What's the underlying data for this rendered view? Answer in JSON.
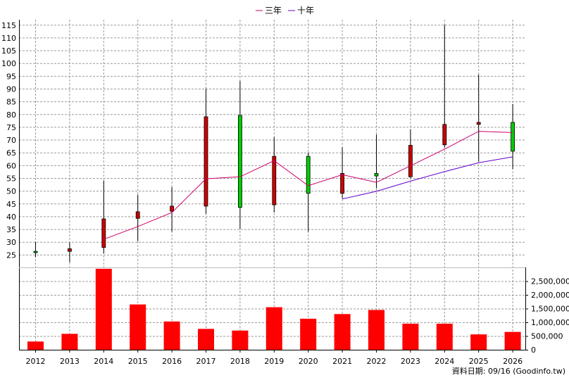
{
  "chart_data": [
    {
      "type": "candlestick",
      "legend": {
        "placement": "top-center",
        "items": [
          {
            "name": "三年",
            "color": "#cc0066"
          },
          {
            "name": "十年",
            "color": "#6600cc"
          }
        ]
      },
      "ylim": [
        20,
        117
      ],
      "yticks": [
        "25",
        "30",
        "35",
        "40",
        "45",
        "50",
        "55",
        "60",
        "65",
        "70",
        "75",
        "80",
        "85",
        "90",
        "95",
        "100",
        "105",
        "110",
        "115"
      ],
      "grid": true,
      "categories": [
        "2012",
        "2013",
        "2014",
        "2015",
        "2016",
        "2017",
        "2018",
        "2019",
        "2020",
        "2021",
        "2022",
        "2023",
        "2024",
        "2025",
        "2026"
      ],
      "ohlc": [
        {
          "year": "2012",
          "open": 26.3,
          "high": 30.0,
          "low": 24.0,
          "close": 26.0
        },
        {
          "year": "2013",
          "open": 26.3,
          "high": 29.8,
          "low": 22.0,
          "close": 27.3
        },
        {
          "year": "2014",
          "open": 27.8,
          "high": 54.0,
          "low": 25.5,
          "close": 39.0
        },
        {
          "year": "2015",
          "open": 39.2,
          "high": 48.5,
          "low": 30.3,
          "close": 41.8
        },
        {
          "year": "2016",
          "open": 42.0,
          "high": 51.5,
          "low": 34.0,
          "close": 44.0
        },
        {
          "year": "2017",
          "open": 44.0,
          "high": 90.0,
          "low": 41.0,
          "close": 79.0
        },
        {
          "year": "2018",
          "open": 79.5,
          "high": 93.0,
          "low": 35.0,
          "close": 43.5
        },
        {
          "year": "2019",
          "open": 44.5,
          "high": 71.0,
          "low": 41.5,
          "close": 63.5
        },
        {
          "year": "2020",
          "open": 63.5,
          "high": 65.0,
          "low": 34.0,
          "close": 49.0
        },
        {
          "year": "2021",
          "open": 49.0,
          "high": 67.0,
          "low": 47.0,
          "close": 56.8
        },
        {
          "year": "2022",
          "open": 56.8,
          "high": 72.0,
          "low": 51.0,
          "close": 55.8
        },
        {
          "year": "2023",
          "open": 55.5,
          "high": 74.0,
          "low": 55.0,
          "close": 67.8
        },
        {
          "year": "2024",
          "open": 68.0,
          "high": 115.0,
          "low": 67.0,
          "close": 76.0
        },
        {
          "year": "2025",
          "open": 76.0,
          "high": 95.5,
          "low": 61.5,
          "close": 76.8
        },
        {
          "year": "2026",
          "open": 76.8,
          "high": 84.0,
          "low": 58.5,
          "close": 65.5
        }
      ],
      "series": [
        {
          "name": "三年",
          "color": "#cc0066",
          "points": [
            {
              "x": "2014",
              "y": 31.0
            },
            {
              "x": "2015",
              "y": 36.0
            },
            {
              "x": "2016",
              "y": 41.5
            },
            {
              "x": "2017",
              "y": 54.7
            },
            {
              "x": "2018",
              "y": 55.5
            },
            {
              "x": "2019",
              "y": 61.8
            },
            {
              "x": "2020",
              "y": 52.0
            },
            {
              "x": "2021",
              "y": 56.3
            },
            {
              "x": "2022",
              "y": 53.3
            },
            {
              "x": "2023",
              "y": 59.8
            },
            {
              "x": "2024",
              "y": 66.3
            },
            {
              "x": "2025",
              "y": 73.3
            },
            {
              "x": "2026",
              "y": 72.8
            }
          ]
        },
        {
          "name": "十年",
          "color": "#6600cc",
          "points": [
            {
              "x": "2021",
              "y": 46.8
            },
            {
              "x": "2022",
              "y": 49.8
            },
            {
              "x": "2023",
              "y": 53.8
            },
            {
              "x": "2024",
              "y": 57.5
            },
            {
              "x": "2025",
              "y": 61.0
            },
            {
              "x": "2026",
              "y": 63.3
            }
          ]
        }
      ]
    },
    {
      "type": "bar",
      "categories": [
        "2012",
        "2013",
        "2014",
        "2015",
        "2016",
        "2017",
        "2018",
        "2019",
        "2020",
        "2021",
        "2022",
        "2023",
        "2024",
        "2025",
        "2026"
      ],
      "values": [
        300000,
        580000,
        2950000,
        1650000,
        1030000,
        760000,
        700000,
        1550000,
        1130000,
        1300000,
        1450000,
        950000,
        950000,
        560000,
        650000
      ],
      "ylim": [
        0,
        3000000
      ],
      "yticks": [
        "0",
        "500,000",
        "1,000,000",
        "1,500,000",
        "2,000,000",
        "2,500,000"
      ],
      "grid": true,
      "bar_color": "#ff0000"
    }
  ],
  "footer": {
    "source_label": "資料日期: 09/16 (Goodinfo.tw)"
  }
}
